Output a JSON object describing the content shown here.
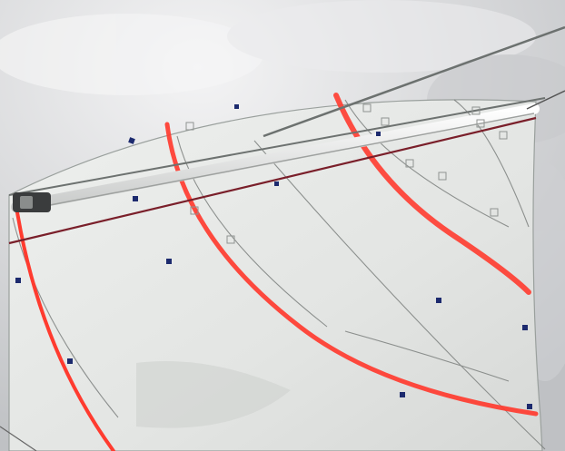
{
  "photo": {
    "subject": "sail-photo",
    "colors": {
      "sky": "#d9dadc",
      "cloud": "#eeeff0",
      "sail": "#e7e8e6",
      "sail_shadow": "#d4d6d4",
      "telltale_stripe": "#ff3b2f",
      "boom": "#f1f1ef",
      "sheet_line": "#7a1f2a",
      "marker": "#1c2a6e",
      "seam": "#6d716f"
    }
  }
}
